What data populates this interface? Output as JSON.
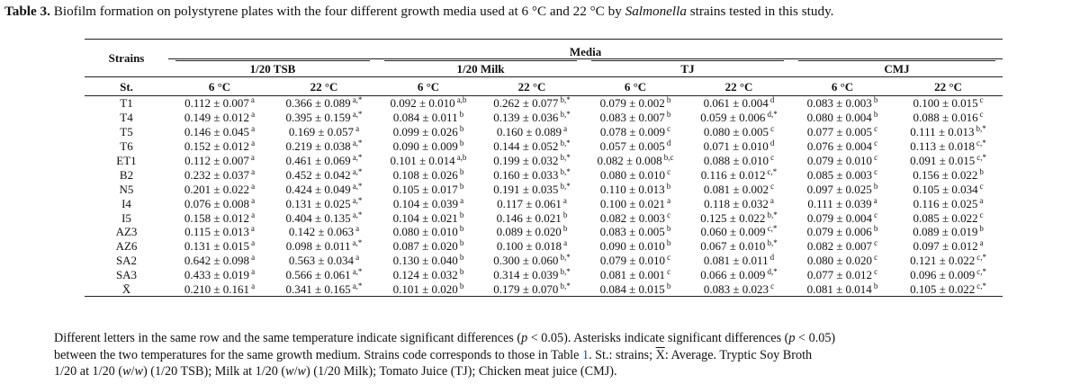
{
  "caption": {
    "label": "Table 3.",
    "text_before": " Biofilm formation on polystyrene plates with the four different growth media used at 6 °C and 22 °C by ",
    "italic": "Salmonella",
    "text_after": " strains tested in this study."
  },
  "header": {
    "strains": "Strains",
    "media": "Media",
    "groups": [
      "1/20 TSB",
      "1/20 Milk",
      "TJ",
      "CMJ"
    ],
    "st": "St.",
    "temps": [
      "6 °C",
      "22 °C",
      "6 °C",
      "22 °C",
      "6 °C",
      "22 °C",
      "6 °C",
      "22 °C"
    ]
  },
  "rows": [
    {
      "strain": "T1",
      "cells": [
        [
          "0.112 ± 0.007",
          "a"
        ],
        [
          "0.366 ± 0.089",
          "a,*"
        ],
        [
          "0.092 ± 0.010",
          "a,b"
        ],
        [
          "0.262 ± 0.077",
          "b,*"
        ],
        [
          "0.079 ± 0.002",
          "b"
        ],
        [
          "0.061 ± 0.004",
          "d"
        ],
        [
          "0.083 ± 0.003",
          "b"
        ],
        [
          "0.100 ± 0.015",
          "c"
        ]
      ]
    },
    {
      "strain": "T4",
      "cells": [
        [
          "0.149 ± 0.012",
          "a"
        ],
        [
          "0.395 ± 0.159",
          "a,*"
        ],
        [
          "0.084 ± 0.011",
          "b"
        ],
        [
          "0.139 ± 0.036",
          "b,*"
        ],
        [
          "0.083 ± 0.007",
          "b"
        ],
        [
          "0.059 ± 0.006",
          "d,*"
        ],
        [
          "0.080 ± 0.004",
          "b"
        ],
        [
          "0.088 ± 0.016",
          "c"
        ]
      ]
    },
    {
      "strain": "T5",
      "cells": [
        [
          "0.146 ± 0.045",
          "a"
        ],
        [
          "0.169 ± 0.057",
          "a"
        ],
        [
          "0.099 ± 0.026",
          "b"
        ],
        [
          "0.160 ± 0.089",
          "a"
        ],
        [
          "0.078 ± 0.009",
          "c"
        ],
        [
          "0.080 ± 0.005",
          "c"
        ],
        [
          "0.077 ± 0.005",
          "c"
        ],
        [
          "0.111 ± 0.013",
          "b,*"
        ]
      ]
    },
    {
      "strain": "T6",
      "cells": [
        [
          "0.152 ± 0.012",
          "a"
        ],
        [
          "0.219 ± 0.038",
          "a,*"
        ],
        [
          "0.090 ± 0.009",
          "b"
        ],
        [
          "0.144 ± 0.052",
          "b,*"
        ],
        [
          "0.057 ± 0.005",
          "d"
        ],
        [
          "0.071 ± 0.010",
          "d"
        ],
        [
          "0.076 ± 0.004",
          "c"
        ],
        [
          "0.113 ± 0.018",
          "c,*"
        ]
      ]
    },
    {
      "strain": "ET1",
      "cells": [
        [
          "0.112 ± 0.007",
          "a"
        ],
        [
          "0.461 ± 0.069",
          "a,*"
        ],
        [
          "0.101 ± 0.014",
          "a,b"
        ],
        [
          "0.199 ± 0.032",
          "b,*"
        ],
        [
          "0.082 ± 0.008",
          "b,c"
        ],
        [
          "0.088 ± 0.010",
          "c"
        ],
        [
          "0.079 ± 0.010",
          "c"
        ],
        [
          "0.091 ± 0.015",
          "c,*"
        ]
      ]
    },
    {
      "strain": "B2",
      "cells": [
        [
          "0.232 ± 0.037",
          "a"
        ],
        [
          "0.452 ± 0.042",
          "a,*"
        ],
        [
          "0.108 ± 0.026",
          "b"
        ],
        [
          "0.160 ± 0.033",
          "b,*"
        ],
        [
          "0.080 ± 0.010",
          "c"
        ],
        [
          "0.116 ± 0.012",
          "c,*"
        ],
        [
          "0.085 ± 0.003",
          "c"
        ],
        [
          "0.156 ± 0.022",
          "b"
        ]
      ]
    },
    {
      "strain": "N5",
      "cells": [
        [
          "0.201 ± 0.022",
          "a"
        ],
        [
          "0.424 ± 0.049",
          "a,*"
        ],
        [
          "0.105 ± 0.017",
          "b"
        ],
        [
          "0.191 ± 0.035",
          "b,*"
        ],
        [
          "0.110 ± 0.013",
          "b"
        ],
        [
          "0.081 ± 0.002",
          "c"
        ],
        [
          "0.097 ± 0.025",
          "b"
        ],
        [
          "0.105 ± 0.034",
          "c"
        ]
      ]
    },
    {
      "strain": "I4",
      "cells": [
        [
          "0.076 ± 0.008",
          "a"
        ],
        [
          "0.131 ± 0.025",
          "a,*"
        ],
        [
          "0.104 ± 0.039",
          "a"
        ],
        [
          "0.117 ± 0.061",
          "a"
        ],
        [
          "0.100 ± 0.021",
          "a"
        ],
        [
          "0.118 ± 0.032",
          "a"
        ],
        [
          "0.111 ± 0.039",
          "a"
        ],
        [
          "0.116 ± 0.025",
          "a"
        ]
      ]
    },
    {
      "strain": "I5",
      "cells": [
        [
          "0.158 ± 0.012",
          "a"
        ],
        [
          "0.404 ± 0.135",
          "a,*"
        ],
        [
          "0.104 ± 0.021",
          "b"
        ],
        [
          "0.146 ± 0.021",
          "b"
        ],
        [
          "0.082 ± 0.003",
          "c"
        ],
        [
          "0.125 ± 0.022",
          "b,*"
        ],
        [
          "0.079 ± 0.004",
          "c"
        ],
        [
          "0.085 ± 0.022",
          "c"
        ]
      ]
    },
    {
      "strain": "AZ3",
      "cells": [
        [
          "0.115 ± 0.013",
          "a"
        ],
        [
          "0.142 ± 0.063",
          "a"
        ],
        [
          "0.080 ± 0.010",
          "b"
        ],
        [
          "0.089 ± 0.020",
          "b"
        ],
        [
          "0.083 ± 0.005",
          "b"
        ],
        [
          "0.060 ± 0.009",
          "c,*"
        ],
        [
          "0.079 ± 0.006",
          "b"
        ],
        [
          "0.089 ± 0.019",
          "b"
        ]
      ]
    },
    {
      "strain": "AZ6",
      "cells": [
        [
          "0.131 ± 0.015",
          "a"
        ],
        [
          "0.098 ± 0.011",
          "a,*"
        ],
        [
          "0.087 ± 0.020",
          "b"
        ],
        [
          "0.100 ± 0.018",
          "a"
        ],
        [
          "0.090 ± 0.010",
          "b"
        ],
        [
          "0.067 ± 0.010",
          "b,*"
        ],
        [
          "0.082 ± 0.007",
          "c"
        ],
        [
          "0.097 ± 0.012",
          "a"
        ]
      ]
    },
    {
      "strain": "SA2",
      "cells": [
        [
          "0.642 ± 0.098",
          "a"
        ],
        [
          "0.563 ± 0.034",
          "a"
        ],
        [
          "0.130 ± 0.040",
          "b"
        ],
        [
          "0.300 ± 0.060",
          "b,*"
        ],
        [
          "0.079 ± 0.010",
          "c"
        ],
        [
          "0.081 ± 0.011",
          "d"
        ],
        [
          "0.080 ± 0.020",
          "c"
        ],
        [
          "0.121 ± 0.022",
          "c,*"
        ]
      ]
    },
    {
      "strain": "SA3",
      "cells": [
        [
          "0.433 ± 0.019",
          "a"
        ],
        [
          "0.566 ± 0.061",
          "a,*"
        ],
        [
          "0.124 ± 0.032",
          "b"
        ],
        [
          "0.314 ± 0.039",
          "b,*"
        ],
        [
          "0.081 ± 0.001",
          "c"
        ],
        [
          "0.066 ± 0.009",
          "d,*"
        ],
        [
          "0.077 ± 0.012",
          "c"
        ],
        [
          "0.096 ± 0.009",
          "c,*"
        ]
      ]
    },
    {
      "strain": "X̄",
      "cells": [
        [
          "0.210 ± 0.161",
          "a"
        ],
        [
          "0.341 ± 0.165",
          "a,*"
        ],
        [
          "0.101 ± 0.020",
          "b"
        ],
        [
          "0.179 ± 0.070",
          "b,*"
        ],
        [
          "0.084 ± 0.015",
          "b"
        ],
        [
          "0.083 ± 0.023",
          "c"
        ],
        [
          "0.081 ± 0.014",
          "b"
        ],
        [
          "0.105 ± 0.022",
          "c,*"
        ]
      ]
    }
  ],
  "footer": {
    "line1_a": "Different letters in the same row and the same temperature indicate significant differences (",
    "line1_p1": "p",
    "line1_b": " < 0.05). Asterisks indicate significant differences (",
    "line1_p2": "p",
    "line1_c": " < 0.05)",
    "line2_a": "between the two temperatures for the same growth medium. Strains code corresponds to those in Table ",
    "line2_ref": "1",
    "line2_b": ". St.: strains; ",
    "line2_x": "X",
    "line2_c": ": Average. Tryptic Soy Broth",
    "line3_a": "1/20 at 1/20 (",
    "line3_i1": "w",
    "line3_b": "/",
    "line3_i2": "w",
    "line3_c": ") (1/20 TSB); Milk at 1/20 (",
    "line3_i3": "w",
    "line3_d": "/",
    "line3_i4": "w",
    "line3_e": ") (1/20 Milk); Tomato Juice (TJ); Chicken meat juice (CMJ)."
  }
}
